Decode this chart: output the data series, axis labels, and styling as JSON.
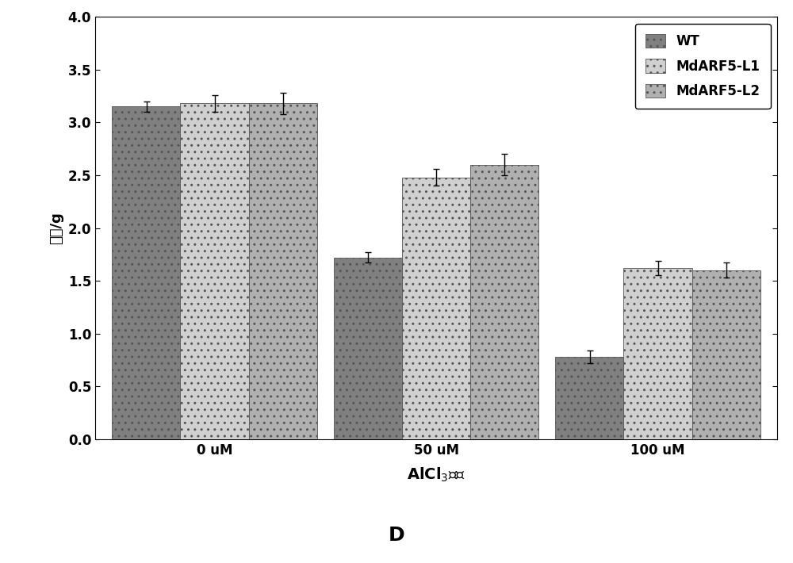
{
  "categories": [
    "0 uM",
    "50 uM",
    "100 uM"
  ],
  "series": {
    "WT": [
      3.15,
      1.72,
      0.78
    ],
    "MdARF5-L1": [
      3.18,
      2.48,
      1.62
    ],
    "MdARF5-L2": [
      3.18,
      2.6,
      1.6
    ]
  },
  "errors": {
    "WT": [
      0.05,
      0.05,
      0.06
    ],
    "MdARF5-L1": [
      0.08,
      0.08,
      0.07
    ],
    "MdARF5-L2": [
      0.1,
      0.1,
      0.07
    ]
  },
  "colors": {
    "WT": "#808080",
    "MdARF5-L1": "#d0d0d0",
    "MdARF5-L2": "#b0b0b0"
  },
  "ylabel": "鲜重/g",
  "xlabel": "AlCl$_3$浓度",
  "title": "D",
  "ylim": [
    0,
    4
  ],
  "yticks": [
    0,
    0.5,
    1.0,
    1.5,
    2.0,
    2.5,
    3.0,
    3.5,
    4.0
  ],
  "legend_labels": [
    "WT",
    "MdARF5-L1",
    "MdARF5-L2"
  ],
  "bar_width": 0.2,
  "background_color": "#ffffff"
}
